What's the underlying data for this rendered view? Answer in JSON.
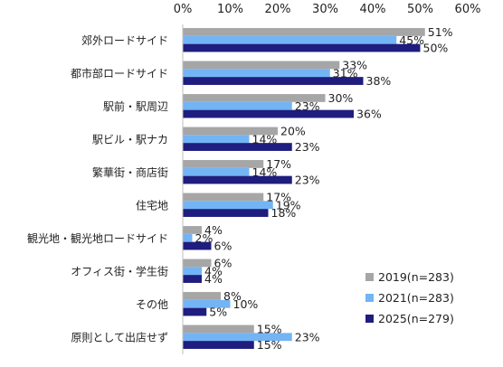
{
  "chart_data": {
    "type": "bar",
    "orientation": "horizontal",
    "title": "",
    "xlabel": "",
    "ylabel": "",
    "xlim": [
      0,
      60
    ],
    "x_tick_labels": [
      "0%",
      "10%",
      "20%",
      "30%",
      "40%",
      "50%",
      "60%"
    ],
    "tick_positions": "top",
    "grid": false,
    "legend_position": "bottom-right",
    "value_suffix": "%",
    "categories": [
      "郊外ロードサイド",
      "都市部ロードサイド",
      "駅前・駅周辺",
      "駅ビル・駅ナカ",
      "繁華街・商店街",
      "住宅地",
      "観光地・観光地ロードサイド",
      "オフィス街・学生街",
      "その他",
      "原則として出店せず"
    ],
    "series": [
      {
        "name": "2019(n=283)",
        "color": "#a6a6a6",
        "values": [
          51,
          33,
          30,
          20,
          17,
          17,
          4,
          6,
          8,
          15
        ]
      },
      {
        "name": "2021(n=283)",
        "color": "#73b4f5",
        "values": [
          45,
          31,
          23,
          14,
          14,
          19,
          2,
          4,
          10,
          23
        ]
      },
      {
        "name": "2025(n=279)",
        "color": "#1f1d7e",
        "values": [
          50,
          38,
          36,
          23,
          23,
          18,
          6,
          4,
          5,
          15
        ]
      }
    ]
  }
}
